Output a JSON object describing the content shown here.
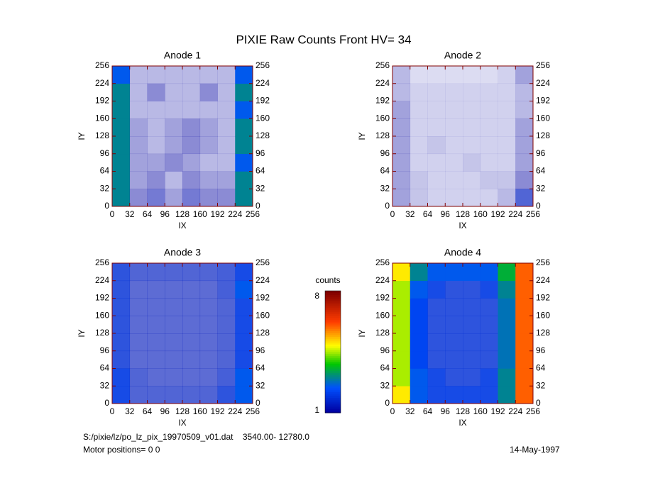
{
  "title": "PIXIE Raw Counts Front HV= 34",
  "footer": {
    "file": "S:/pixie/lz/po_lz_pix_19970509_v01.dat    3540.00- 12780.0",
    "motor": "Motor positions= 0 0",
    "date": "14-May-1997"
  },
  "colorbar": {
    "label": "counts",
    "lim": [
      1,
      8
    ],
    "ticks": [
      1,
      8
    ],
    "colormap": "rainbow"
  },
  "chart_data": [
    {
      "type": "heatmap",
      "title": "Anode 1",
      "xlabel": "IX",
      "ylabel": "IY",
      "axis_color": "#800000",
      "xlim": [
        0,
        256
      ],
      "ylim": [
        0,
        256
      ],
      "xticks": [
        0,
        32,
        64,
        96,
        128,
        160,
        192,
        224,
        256
      ],
      "yticks": [
        0,
        32,
        64,
        96,
        128,
        160,
        192,
        224,
        256
      ],
      "values": [
        [
          3,
          1,
          1.2,
          0.8,
          1.2,
          1,
          1,
          3
        ],
        [
          3,
          0.8,
          1,
          0.6,
          1,
          0.8,
          0.8,
          3
        ],
        [
          3,
          0.8,
          0.8,
          1,
          0.8,
          0.6,
          0.6,
          2.5
        ],
        [
          3,
          0.8,
          0.6,
          0.8,
          1,
          0.8,
          0.6,
          3
        ],
        [
          3,
          0.8,
          0.6,
          0.8,
          1,
          0.8,
          0.6,
          3
        ],
        [
          3,
          0.6,
          0.6,
          0.6,
          0.6,
          0.6,
          0.6,
          2.5
        ],
        [
          3,
          0.6,
          1,
          0.6,
          0.6,
          1,
          0.6,
          3
        ],
        [
          2.5,
          0.6,
          0.6,
          0.6,
          0.6,
          0.6,
          0.6,
          2.5
        ]
      ]
    },
    {
      "type": "heatmap",
      "title": "Anode 2",
      "xlabel": "IX",
      "ylabel": "IY",
      "axis_color": "#800000",
      "xlim": [
        0,
        256
      ],
      "ylim": [
        0,
        256
      ],
      "xticks": [
        0,
        32,
        64,
        96,
        128,
        160,
        192,
        224,
        256
      ],
      "yticks": [
        0,
        32,
        64,
        96,
        128,
        160,
        192,
        224,
        256
      ],
      "values": [
        [
          0.8,
          0.5,
          0.4,
          0.4,
          0.4,
          0.4,
          0.6,
          1.5
        ],
        [
          0.8,
          0.5,
          0.4,
          0.4,
          0.4,
          0.5,
          0.5,
          1
        ],
        [
          0.8,
          0.4,
          0.4,
          0.4,
          0.5,
          0.4,
          0.4,
          0.8
        ],
        [
          0.8,
          0.4,
          0.5,
          0.4,
          0.4,
          0.4,
          0.4,
          0.8
        ],
        [
          0.8,
          0.4,
          0.4,
          0.4,
          0.4,
          0.4,
          0.4,
          0.8
        ],
        [
          0.8,
          0.4,
          0.4,
          0.4,
          0.4,
          0.4,
          0.4,
          0.6
        ],
        [
          0.6,
          0.4,
          0.4,
          0.4,
          0.4,
          0.4,
          0.4,
          0.6
        ],
        [
          0.6,
          0.3,
          0.3,
          0.3,
          0.3,
          0.3,
          0.4,
          0.8
        ]
      ]
    },
    {
      "type": "heatmap",
      "title": "Anode 3",
      "xlabel": "IX",
      "ylabel": "IY",
      "axis_color": "#800000",
      "xlim": [
        0,
        256
      ],
      "ylim": [
        0,
        256
      ],
      "xticks": [
        0,
        32,
        64,
        96,
        128,
        160,
        192,
        224,
        256
      ],
      "yticks": [
        0,
        32,
        64,
        96,
        128,
        160,
        192,
        224,
        256
      ],
      "values": [
        [
          2,
          1.5,
          1.5,
          1.5,
          1.5,
          1.5,
          1.8,
          2.5
        ],
        [
          2,
          1.5,
          1.4,
          1.4,
          1.4,
          1.4,
          1.6,
          2.5
        ],
        [
          1.8,
          1.4,
          1.4,
          1.4,
          1.4,
          1.4,
          1.5,
          2
        ],
        [
          1.8,
          1.4,
          1.4,
          1.4,
          1.4,
          1.4,
          1.5,
          2
        ],
        [
          1.8,
          1.4,
          1.4,
          1.4,
          1.4,
          1.4,
          1.5,
          2
        ],
        [
          1.8,
          1.4,
          1.4,
          1.4,
          1.4,
          1.4,
          1.5,
          2
        ],
        [
          1.8,
          1.4,
          1.4,
          1.4,
          1.4,
          1.4,
          1.6,
          2.5
        ],
        [
          1.8,
          1.5,
          1.5,
          1.5,
          1.5,
          1.5,
          1.6,
          2
        ]
      ]
    },
    {
      "type": "heatmap",
      "title": "Anode 4",
      "xlabel": "IX",
      "ylabel": "IY",
      "axis_color": "#800000",
      "xlim": [
        0,
        256
      ],
      "ylim": [
        0,
        256
      ],
      "xticks": [
        0,
        32,
        64,
        96,
        128,
        160,
        192,
        224,
        256
      ],
      "yticks": [
        0,
        32,
        64,
        96,
        128,
        160,
        192,
        224,
        256
      ],
      "values": [
        [
          5,
          2.5,
          2,
          2,
          2,
          2,
          3,
          6
        ],
        [
          4.5,
          2.5,
          2,
          1.8,
          1.8,
          2,
          3,
          6
        ],
        [
          4.5,
          2.2,
          1.8,
          1.8,
          1.8,
          1.8,
          2.8,
          6
        ],
        [
          4.5,
          2.2,
          1.8,
          1.8,
          1.8,
          1.8,
          2.8,
          6
        ],
        [
          4.5,
          2.2,
          1.8,
          1.8,
          1.8,
          1.8,
          2.8,
          6
        ],
        [
          4.5,
          2.2,
          1.8,
          1.8,
          1.8,
          1.8,
          2.8,
          6
        ],
        [
          4.5,
          2.5,
          2,
          1.8,
          1.8,
          2,
          3,
          6
        ],
        [
          5,
          3,
          2.5,
          2.5,
          2.5,
          2.5,
          3.5,
          6
        ]
      ]
    }
  ]
}
